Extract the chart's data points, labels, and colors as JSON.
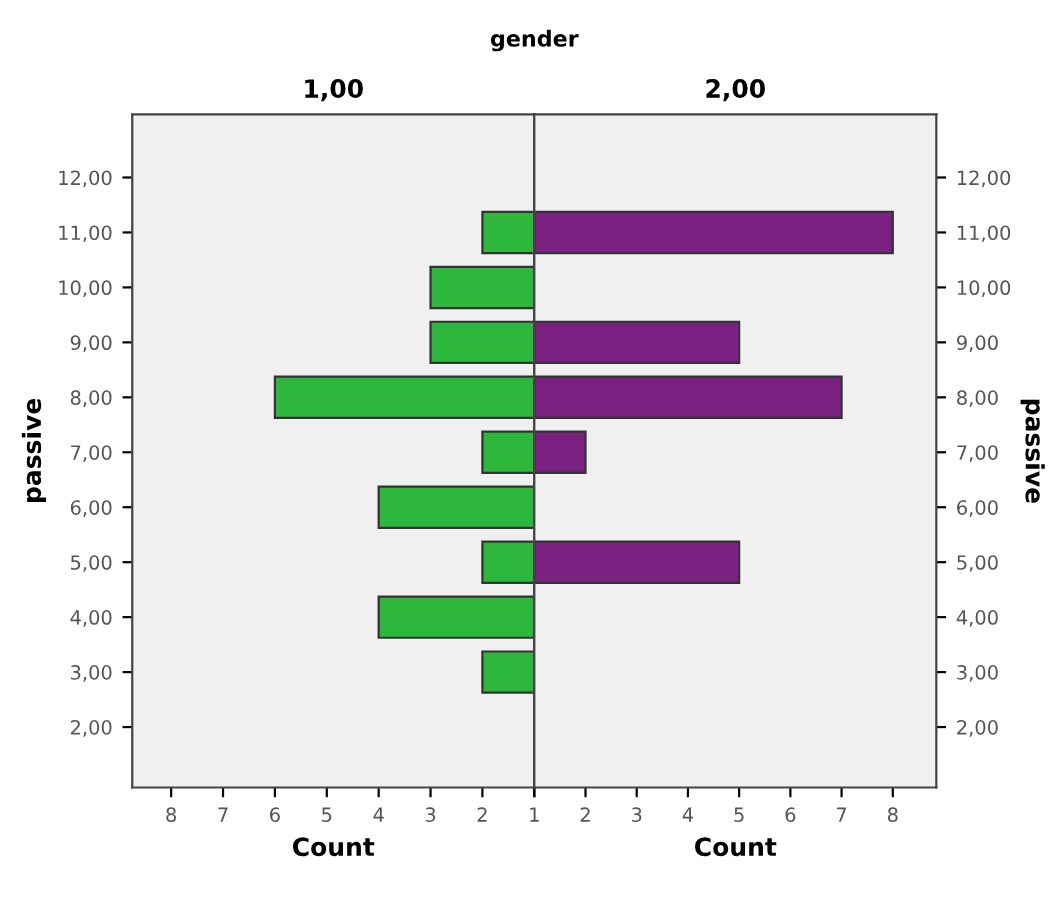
{
  "chart_data": [
    {
      "type": "bar",
      "orientation": "horizontal",
      "title": "1,00",
      "annotations": [
        "gender"
      ],
      "ylabel": "passive",
      "xlabel": "Count",
      "x": [
        11,
        10,
        9,
        8,
        7,
        6,
        5,
        4,
        3
      ],
      "series": [
        {
          "color": "#2db83d",
          "values": [
            2,
            3,
            3,
            6,
            2,
            4,
            2,
            4,
            2
          ]
        }
      ],
      "xlim": [
        8.75,
        1
      ],
      "xticks": [
        8,
        7,
        6,
        5,
        4,
        3,
        2,
        1
      ],
      "ylim": [
        0.9,
        13.15
      ],
      "yticks": [
        {
          "value": 2,
          "label": "2,00"
        },
        {
          "value": 3,
          "label": "3,00"
        },
        {
          "value": 4,
          "label": "4,00"
        },
        {
          "value": 5,
          "label": "5,00"
        },
        {
          "value": 6,
          "label": "6,00"
        },
        {
          "value": 7,
          "label": "7,00"
        },
        {
          "value": 8,
          "label": "8,00"
        },
        {
          "value": 9,
          "label": "9,00"
        },
        {
          "value": 10,
          "label": "10,00"
        },
        {
          "value": 11,
          "label": "11,00"
        },
        {
          "value": 12,
          "label": "12,00"
        }
      ]
    },
    {
      "type": "bar",
      "orientation": "horizontal",
      "title": "2,00",
      "ylabel": "passive",
      "xlabel": "Count",
      "x": [
        11,
        9,
        8,
        7,
        5
      ],
      "series": [
        {
          "color": "#7b2182",
          "values": [
            8,
            5,
            7,
            2,
            5
          ]
        }
      ],
      "xlim": [
        1,
        8.85
      ],
      "xticks": [
        {
          "value": 1,
          "label": null
        },
        2,
        3,
        4,
        5,
        6,
        7,
        8
      ],
      "ylim": [
        0.9,
        13.15
      ],
      "yticks": [
        {
          "value": 2,
          "label": "2,00"
        },
        {
          "value": 3,
          "label": "3,00"
        },
        {
          "value": 4,
          "label": "4,00"
        },
        {
          "value": 5,
          "label": "5,00"
        },
        {
          "value": 6,
          "label": "6,00"
        },
        {
          "value": 7,
          "label": "7,00"
        },
        {
          "value": 8,
          "label": "8,00"
        },
        {
          "value": 9,
          "label": "9,00"
        },
        {
          "value": 10,
          "label": "10,00"
        },
        {
          "value": 11,
          "label": "11,00"
        },
        {
          "value": 12,
          "label": "12,00"
        }
      ]
    }
  ]
}
